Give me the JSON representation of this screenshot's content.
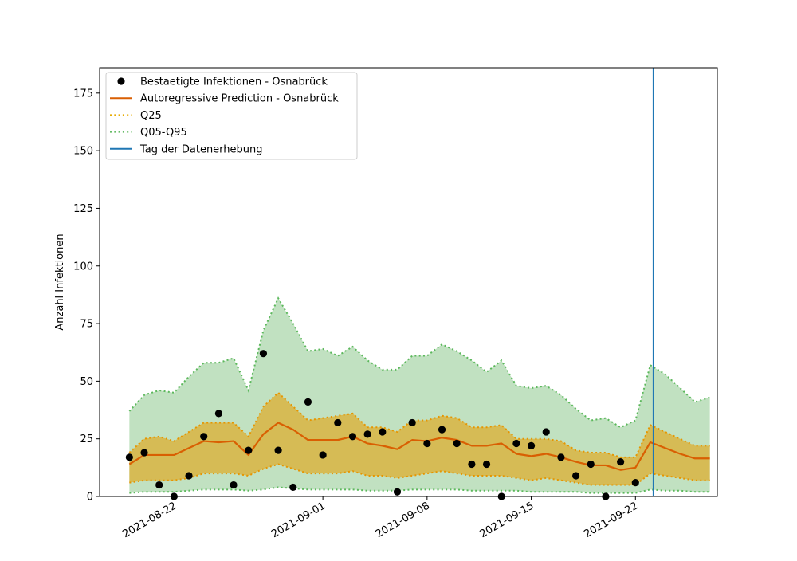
{
  "chart_data": {
    "type": "line",
    "title": "",
    "xlabel": "",
    "ylabel": "Anzahl Infektionen",
    "x_start": "2021-08-19",
    "ylim": [
      0,
      186
    ],
    "yticks": [
      0,
      25,
      50,
      75,
      100,
      125,
      150,
      175
    ],
    "xticks": [
      {
        "label": "2021-08-22",
        "day": 3
      },
      {
        "label": "2021-09-01",
        "day": 13
      },
      {
        "label": "2021-09-08",
        "day": 20
      },
      {
        "label": "2021-09-15",
        "day": 27
      },
      {
        "label": "2021-09-22",
        "day": 34
      }
    ],
    "xlim": [
      -2,
      39.5
    ],
    "vline": {
      "day": 35.2,
      "label": "Tag der Datenerhebung",
      "color": "#1f77b4"
    },
    "series": [
      {
        "name": "Bestaetigte Infektionen - Osnabrück",
        "kind": "scatter",
        "color": "#000000",
        "points": [
          [
            0,
            17
          ],
          [
            1,
            19
          ],
          [
            2,
            5
          ],
          [
            3,
            0
          ],
          [
            4,
            9
          ],
          [
            5,
            26
          ],
          [
            6,
            36
          ],
          [
            7,
            5
          ],
          [
            8,
            20
          ],
          [
            9,
            62
          ],
          [
            10,
            20
          ],
          [
            11,
            4
          ],
          [
            12,
            41
          ],
          [
            13,
            18
          ],
          [
            14,
            32
          ],
          [
            15,
            26
          ],
          [
            16,
            27
          ],
          [
            17,
            28
          ],
          [
            18,
            2
          ],
          [
            19,
            32
          ],
          [
            20,
            23
          ],
          [
            21,
            29
          ],
          [
            22,
            23
          ],
          [
            23,
            14
          ],
          [
            24,
            14
          ],
          [
            25,
            0
          ],
          [
            26,
            23
          ],
          [
            27,
            22
          ],
          [
            28,
            28
          ],
          [
            29,
            17
          ],
          [
            30,
            9
          ],
          [
            31,
            14
          ],
          [
            32,
            0
          ],
          [
            33,
            15
          ],
          [
            34,
            6
          ]
        ]
      },
      {
        "name": "Autoregressive Prediction - Osnabrück",
        "kind": "line",
        "color": "#d95f02",
        "points": [
          [
            0,
            14
          ],
          [
            1,
            18
          ],
          [
            2,
            18
          ],
          [
            3,
            18
          ],
          [
            4,
            21
          ],
          [
            5,
            24
          ],
          [
            6,
            23.5
          ],
          [
            7,
            24
          ],
          [
            8,
            18
          ],
          [
            9,
            27
          ],
          [
            10,
            32
          ],
          [
            11,
            29
          ],
          [
            12,
            24.5
          ],
          [
            13,
            24.5
          ],
          [
            14,
            24.5
          ],
          [
            15,
            26
          ],
          [
            16,
            23
          ],
          [
            17,
            22
          ],
          [
            18,
            20.5
          ],
          [
            19,
            24.5
          ],
          [
            20,
            24
          ],
          [
            21,
            25.5
          ],
          [
            22,
            24.5
          ],
          [
            23,
            22
          ],
          [
            24,
            22
          ],
          [
            25,
            23
          ],
          [
            26,
            18.5
          ],
          [
            27,
            17.5
          ],
          [
            28,
            18.5
          ],
          [
            29,
            17
          ],
          [
            30,
            15
          ],
          [
            31,
            13.5
          ],
          [
            32,
            13.5
          ],
          [
            33,
            11.5
          ],
          [
            34,
            12.5
          ],
          [
            35,
            23.5
          ],
          [
            36,
            21
          ],
          [
            37,
            18.5
          ],
          [
            38,
            16.5
          ],
          [
            39,
            16.5
          ]
        ]
      },
      {
        "name": "Q25",
        "kind": "band",
        "color": "#e6ab02",
        "upper": [
          [
            0,
            19
          ],
          [
            1,
            25
          ],
          [
            2,
            26
          ],
          [
            3,
            24
          ],
          [
            4,
            28
          ],
          [
            5,
            32
          ],
          [
            6,
            32
          ],
          [
            7,
            32
          ],
          [
            8,
            26
          ],
          [
            9,
            39
          ],
          [
            10,
            45
          ],
          [
            11,
            39
          ],
          [
            12,
            33
          ],
          [
            13,
            34
          ],
          [
            14,
            35
          ],
          [
            15,
            36
          ],
          [
            16,
            30
          ],
          [
            17,
            30
          ],
          [
            18,
            28
          ],
          [
            19,
            33
          ],
          [
            20,
            33
          ],
          [
            21,
            35
          ],
          [
            22,
            34
          ],
          [
            23,
            30
          ],
          [
            24,
            30
          ],
          [
            25,
            31
          ],
          [
            26,
            25
          ],
          [
            27,
            25
          ],
          [
            28,
            25
          ],
          [
            29,
            24
          ],
          [
            30,
            20
          ],
          [
            31,
            19
          ],
          [
            32,
            19
          ],
          [
            33,
            17
          ],
          [
            34,
            17
          ],
          [
            35,
            31
          ],
          [
            36,
            28
          ],
          [
            37,
            25
          ],
          [
            38,
            22
          ],
          [
            39,
            22
          ]
        ],
        "lower": [
          [
            0,
            6
          ],
          [
            1,
            7
          ],
          [
            2,
            7
          ],
          [
            3,
            7
          ],
          [
            4,
            8
          ],
          [
            5,
            10
          ],
          [
            6,
            10
          ],
          [
            7,
            10
          ],
          [
            8,
            9
          ],
          [
            9,
            12
          ],
          [
            10,
            14
          ],
          [
            11,
            12
          ],
          [
            12,
            10
          ],
          [
            13,
            10
          ],
          [
            14,
            10
          ],
          [
            15,
            11
          ],
          [
            16,
            9
          ],
          [
            17,
            9
          ],
          [
            18,
            8
          ],
          [
            19,
            9
          ],
          [
            20,
            10
          ],
          [
            21,
            11
          ],
          [
            22,
            10
          ],
          [
            23,
            9
          ],
          [
            24,
            9
          ],
          [
            25,
            9
          ],
          [
            26,
            8
          ],
          [
            27,
            7
          ],
          [
            28,
            8
          ],
          [
            29,
            7
          ],
          [
            30,
            6
          ],
          [
            31,
            5
          ],
          [
            32,
            5
          ],
          [
            33,
            5
          ],
          [
            34,
            5
          ],
          [
            35,
            10
          ],
          [
            36,
            9
          ],
          [
            37,
            8
          ],
          [
            38,
            7
          ],
          [
            39,
            7
          ]
        ]
      },
      {
        "name": "Q05-Q95",
        "kind": "band",
        "color": "#66bb66",
        "upper": [
          [
            0,
            37
          ],
          [
            1,
            44
          ],
          [
            2,
            46
          ],
          [
            3,
            45
          ],
          [
            4,
            52
          ],
          [
            5,
            58
          ],
          [
            6,
            58
          ],
          [
            7,
            60
          ],
          [
            8,
            46
          ],
          [
            9,
            72
          ],
          [
            10,
            86
          ],
          [
            11,
            75
          ],
          [
            12,
            63
          ],
          [
            13,
            64
          ],
          [
            14,
            61
          ],
          [
            15,
            65
          ],
          [
            16,
            59
          ],
          [
            17,
            55
          ],
          [
            18,
            55
          ],
          [
            19,
            61
          ],
          [
            20,
            61
          ],
          [
            21,
            66
          ],
          [
            22,
            63
          ],
          [
            23,
            59
          ],
          [
            24,
            54
          ],
          [
            25,
            59
          ],
          [
            26,
            48
          ],
          [
            27,
            47
          ],
          [
            28,
            48
          ],
          [
            29,
            44
          ],
          [
            30,
            38
          ],
          [
            31,
            33
          ],
          [
            32,
            34
          ],
          [
            33,
            30
          ],
          [
            34,
            33
          ],
          [
            35,
            57
          ],
          [
            36,
            53
          ],
          [
            37,
            47
          ],
          [
            38,
            41
          ],
          [
            39,
            43
          ]
        ],
        "lower": [
          [
            0,
            1.5
          ],
          [
            1,
            2
          ],
          [
            2,
            2
          ],
          [
            3,
            2
          ],
          [
            4,
            2.5
          ],
          [
            5,
            3
          ],
          [
            6,
            3
          ],
          [
            7,
            3
          ],
          [
            8,
            2.5
          ],
          [
            9,
            3
          ],
          [
            10,
            4
          ],
          [
            11,
            3.5
          ],
          [
            12,
            3
          ],
          [
            13,
            3
          ],
          [
            14,
            3
          ],
          [
            15,
            3
          ],
          [
            16,
            2.5
          ],
          [
            17,
            2.5
          ],
          [
            18,
            2.5
          ],
          [
            19,
            3
          ],
          [
            20,
            3
          ],
          [
            21,
            3
          ],
          [
            22,
            3
          ],
          [
            23,
            2.5
          ],
          [
            24,
            2.5
          ],
          [
            25,
            2.5
          ],
          [
            26,
            2.5
          ],
          [
            27,
            2
          ],
          [
            28,
            2
          ],
          [
            29,
            2
          ],
          [
            30,
            2
          ],
          [
            31,
            1.5
          ],
          [
            32,
            1.5
          ],
          [
            33,
            1.5
          ],
          [
            34,
            1.5
          ],
          [
            35,
            3
          ],
          [
            36,
            2.5
          ],
          [
            37,
            2.5
          ],
          [
            38,
            2
          ],
          [
            39,
            2
          ]
        ]
      }
    ],
    "legend": {
      "placement": "top-left",
      "entries": [
        {
          "label": "Bestaetigte Infektionen - Osnabrück",
          "marker": "dot",
          "color": "#000000"
        },
        {
          "label": "Autoregressive Prediction - Osnabrück",
          "marker": "line",
          "color": "#d95f02"
        },
        {
          "label": "Q25",
          "marker": "dotted",
          "color": "#e6ab02"
        },
        {
          "label": "Q05-Q95",
          "marker": "dotted",
          "color": "#66bb66"
        },
        {
          "label": "Tag der Datenerhebung",
          "marker": "line",
          "color": "#1f77b4"
        }
      ]
    },
    "colors": {
      "outer_fill": "#c1e1c1",
      "inner_fill": "#d6bb55",
      "outer_edge": "#5cb85c",
      "inner_edge": "#e69500"
    },
    "grid": false
  }
}
